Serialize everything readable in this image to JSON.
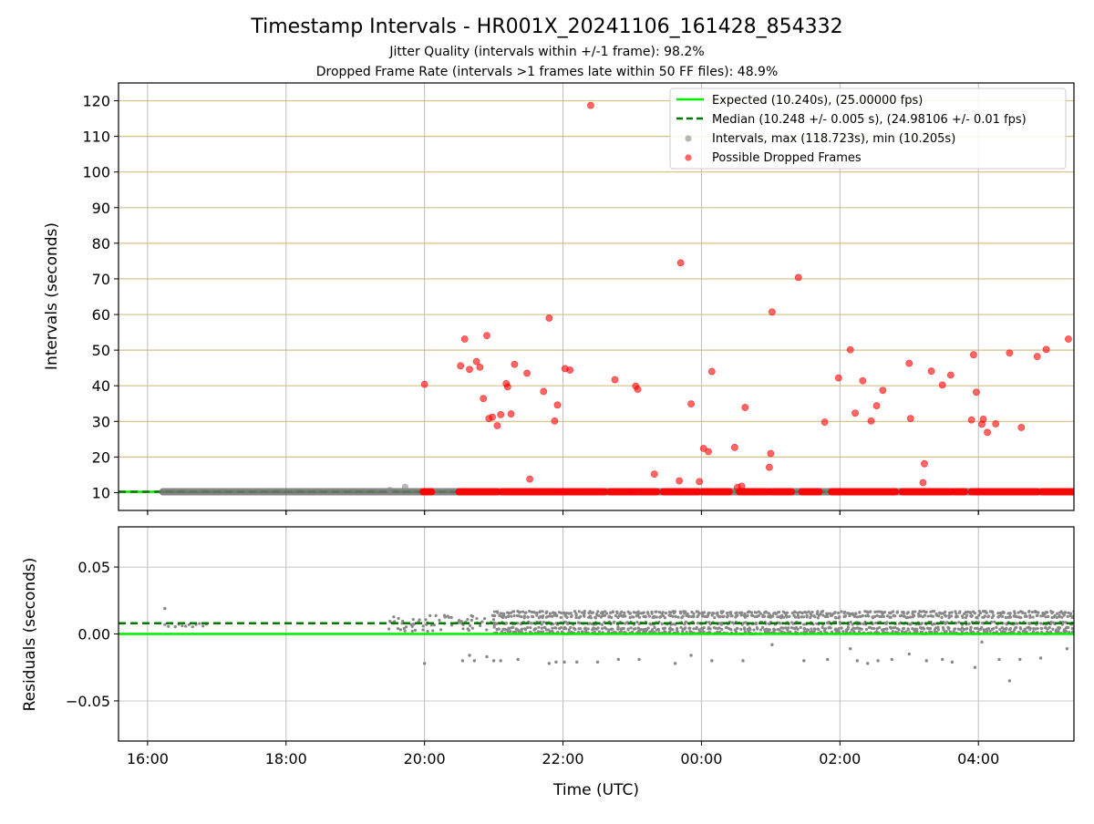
{
  "header": {
    "title": "Timestamp Intervals - HR001X_20241106_161428_854332",
    "subtitle1": "Jitter Quality (intervals within +/-1 frame): 98.2%",
    "subtitle2": "Dropped Frame Rate (intervals >1 frames late within 50 FF files): 48.9%"
  },
  "colors": {
    "expected": "#00ee00",
    "median": "#007700",
    "intervals": "#888888",
    "dropped": "#ff0000",
    "grid_top": "#d4bf86"
  },
  "chart_data": [
    {
      "type": "scatter",
      "title": "Timestamp Intervals - HR001X_20241106_161428_854332",
      "xlabel": "Time (UTC)",
      "ylabel": "Intervals (seconds)",
      "x_unit": "hours since 16:00 UTC",
      "xlim": [
        -0.42,
        13.38
      ],
      "ylim": [
        5,
        125
      ],
      "yticks": [
        10,
        20,
        30,
        40,
        50,
        60,
        70,
        80,
        90,
        100,
        110,
        120
      ],
      "xticks": [
        "16:00",
        "18:00",
        "20:00",
        "22:00",
        "00:00",
        "02:00",
        "04:00"
      ],
      "grid": true,
      "legend_position": "top-right",
      "legend": [
        "Expected (10.240s), (25.00000 fps)",
        "Median (10.248 +/- 0.005 s), (24.98106 +/- 0.01 fps)",
        "Intervals, max (118.723s), min (10.205s)",
        "Possible Dropped Frames"
      ],
      "expected_value": 10.24,
      "median_value": 10.248,
      "intervals_range": [
        0.22,
        13.38
      ],
      "interval_outliers": [
        [
          3.5,
          10.7
        ],
        [
          3.72,
          11.6
        ]
      ],
      "dropped_frames": [
        [
          4.0,
          40.4
        ],
        [
          4.52,
          45.6
        ],
        [
          4.58,
          53.1
        ],
        [
          4.65,
          44.6
        ],
        [
          4.75,
          46.8
        ],
        [
          4.8,
          45.2
        ],
        [
          4.85,
          36.4
        ],
        [
          4.9,
          54.1
        ],
        [
          4.93,
          30.8
        ],
        [
          4.98,
          31.2
        ],
        [
          5.05,
          28.8
        ],
        [
          5.1,
          31.9
        ],
        [
          5.18,
          40.6
        ],
        [
          5.2,
          39.7
        ],
        [
          5.25,
          32.1
        ],
        [
          5.3,
          46.0
        ],
        [
          5.48,
          43.5
        ],
        [
          5.52,
          13.8
        ],
        [
          5.72,
          38.4
        ],
        [
          5.8,
          59.0
        ],
        [
          5.88,
          30.1
        ],
        [
          5.92,
          34.6
        ],
        [
          6.03,
          44.8
        ],
        [
          6.1,
          44.4
        ],
        [
          6.4,
          118.7
        ],
        [
          6.75,
          41.7
        ],
        [
          7.05,
          39.9
        ],
        [
          7.08,
          39.0
        ],
        [
          7.32,
          15.2
        ],
        [
          7.68,
          13.3
        ],
        [
          7.7,
          74.5
        ],
        [
          7.85,
          34.9
        ],
        [
          7.97,
          13.1
        ],
        [
          8.03,
          22.4
        ],
        [
          8.1,
          21.5
        ],
        [
          8.15,
          44.0
        ],
        [
          8.48,
          22.7
        ],
        [
          8.52,
          11.5
        ],
        [
          8.58,
          11.8
        ],
        [
          8.63,
          33.9
        ],
        [
          8.98,
          17.1
        ],
        [
          9.0,
          21.0
        ],
        [
          9.02,
          60.7
        ],
        [
          9.4,
          70.4
        ],
        [
          9.78,
          29.8
        ],
        [
          9.98,
          42.2
        ],
        [
          10.15,
          50.1
        ],
        [
          10.22,
          32.3
        ],
        [
          10.33,
          41.4
        ],
        [
          10.45,
          30.1
        ],
        [
          10.53,
          34.4
        ],
        [
          10.62,
          38.7
        ],
        [
          11.0,
          46.3
        ],
        [
          11.02,
          30.8
        ],
        [
          11.2,
          12.8
        ],
        [
          11.22,
          18.1
        ],
        [
          11.32,
          44.1
        ],
        [
          11.48,
          40.2
        ],
        [
          11.6,
          43.0
        ],
        [
          11.9,
          30.4
        ],
        [
          11.93,
          48.7
        ],
        [
          11.97,
          38.2
        ],
        [
          12.05,
          29.2
        ],
        [
          12.07,
          30.6
        ],
        [
          12.13,
          26.9
        ],
        [
          12.25,
          29.3
        ],
        [
          12.45,
          49.2
        ],
        [
          12.62,
          28.3
        ],
        [
          12.85,
          48.2
        ],
        [
          12.98,
          50.2
        ],
        [
          13.3,
          53.1
        ]
      ],
      "dropped_baseline_segments": [
        [
          3.98,
          4.1
        ],
        [
          4.5,
          5.05
        ],
        [
          5.12,
          5.95
        ],
        [
          5.98,
          6.6
        ],
        [
          6.68,
          7.0
        ],
        [
          7.0,
          7.35
        ],
        [
          7.45,
          7.95
        ],
        [
          8.02,
          8.4
        ],
        [
          8.55,
          8.95
        ],
        [
          9.0,
          9.3
        ],
        [
          9.45,
          9.7
        ],
        [
          9.88,
          10.8
        ],
        [
          10.9,
          11.6
        ],
        [
          11.65,
          11.8
        ],
        [
          11.9,
          12.85
        ],
        [
          12.92,
          13.38
        ]
      ],
      "dropped_baseline_value": 10.24
    },
    {
      "type": "scatter",
      "xlabel": "Time (UTC)",
      "ylabel": "Residuals (seconds)",
      "x_unit": "hours since 16:00 UTC",
      "xlim": [
        -0.42,
        13.38
      ],
      "ylim": [
        -0.08,
        0.08
      ],
      "yticks": [
        -0.05,
        0.0,
        0.05
      ],
      "ytick_labels": [
        "−0.05",
        "0.00",
        "0.05"
      ],
      "xticks": [
        "16:00",
        "18:00",
        "20:00",
        "22:00",
        "00:00",
        "02:00",
        "04:00"
      ],
      "grid": true,
      "expected_residual": 0.0,
      "median_residual": 0.008,
      "band_range": [
        5.0,
        13.38
      ],
      "band_values": [
        0.0,
        0.016
      ],
      "sparse_cluster_range": [
        3.5,
        5.0
      ],
      "residual_outliers": [
        [
          0.25,
          0.019
        ],
        [
          4.0,
          -0.022
        ],
        [
          4.55,
          -0.02
        ],
        [
          4.65,
          -0.016
        ],
        [
          4.72,
          -0.02
        ],
        [
          4.9,
          -0.017
        ],
        [
          5.0,
          -0.02
        ],
        [
          5.1,
          -0.02
        ],
        [
          5.35,
          -0.019
        ],
        [
          5.8,
          -0.022
        ],
        [
          5.9,
          -0.021
        ],
        [
          6.02,
          -0.021
        ],
        [
          6.2,
          -0.021
        ],
        [
          6.5,
          -0.021
        ],
        [
          6.8,
          -0.019
        ],
        [
          7.1,
          -0.019
        ],
        [
          7.62,
          -0.022
        ],
        [
          7.85,
          -0.016
        ],
        [
          8.15,
          -0.02
        ],
        [
          8.6,
          -0.02
        ],
        [
          9.02,
          -0.008
        ],
        [
          9.48,
          -0.02
        ],
        [
          9.82,
          -0.019
        ],
        [
          10.15,
          -0.011
        ],
        [
          10.25,
          -0.02
        ],
        [
          10.4,
          -0.022
        ],
        [
          10.55,
          -0.02
        ],
        [
          10.75,
          -0.019
        ],
        [
          11.0,
          -0.015
        ],
        [
          11.25,
          -0.02
        ],
        [
          11.48,
          -0.019
        ],
        [
          11.62,
          -0.021
        ],
        [
          11.95,
          -0.025
        ],
        [
          12.05,
          -0.006
        ],
        [
          12.3,
          -0.019
        ],
        [
          12.45,
          -0.035
        ],
        [
          12.6,
          -0.019
        ],
        [
          12.9,
          -0.018
        ],
        [
          13.28,
          -0.011
        ]
      ]
    }
  ]
}
